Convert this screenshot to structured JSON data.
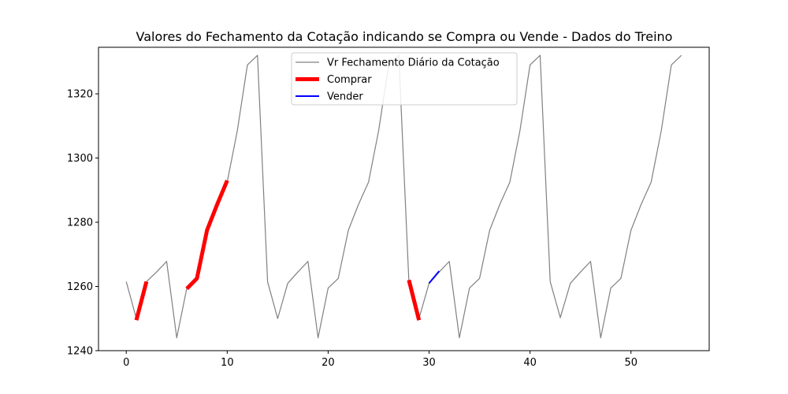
{
  "chart_data": {
    "type": "line",
    "title": "Valores do Fechamento da Cotação indicando se Compra ou Vende - Dados do Treino",
    "xlabel": "",
    "ylabel": "",
    "xlim": [
      -2.75,
      57.75
    ],
    "ylim": [
      1240,
      1334.5
    ],
    "x_ticks": [
      0,
      10,
      20,
      30,
      40,
      50
    ],
    "y_ticks": [
      1240,
      1260,
      1280,
      1300,
      1320
    ],
    "grid": false,
    "legend_position": "top-center",
    "series": [
      {
        "name": "Vr Fechamento Diário da Cotação",
        "color": "#808080",
        "x": [
          0,
          1,
          2,
          3,
          4,
          5,
          6,
          7,
          8,
          9,
          10,
          11,
          12,
          13,
          14,
          15,
          16,
          17,
          18,
          19,
          20,
          21,
          22,
          23,
          24,
          25,
          26,
          27,
          28,
          29,
          30,
          31,
          32,
          33,
          34,
          35,
          36,
          37,
          38,
          39,
          40,
          41,
          42,
          43,
          44,
          45,
          46,
          47,
          48,
          49,
          50,
          51,
          52,
          53,
          54,
          55
        ],
        "values": [
          1261.5,
          1250,
          1261.5,
          1264.5,
          1267.8,
          1244,
          1259.5,
          1262.5,
          1277.5,
          1285.5,
          1292.5,
          1308.5,
          1329,
          1332,
          1261.5,
          1250,
          1261,
          1264.5,
          1267.8,
          1244,
          1259.5,
          1262.5,
          1277.5,
          1285.5,
          1292.5,
          1308.5,
          1329,
          1332,
          1261.5,
          1250,
          1261,
          1264.5,
          1267.8,
          1244,
          1259.5,
          1262.5,
          1277.5,
          1285.5,
          1292.5,
          1308.5,
          1329,
          1332,
          1261.5,
          1250.3,
          1261,
          1264.5,
          1267.8,
          1244,
          1259.5,
          1262.5,
          1277.5,
          1285.5,
          1292.5,
          1308.5,
          1329,
          1332
        ]
      },
      {
        "name": "Comprar",
        "color": "#ff0000",
        "segments": [
          {
            "x": [
              1,
              2
            ],
            "values": [
              1249.5,
              1261.5
            ]
          },
          {
            "x": [
              6,
              7,
              8,
              9,
              10
            ],
            "values": [
              1259.3,
              1262.5,
              1277.5,
              1285.5,
              1293
            ]
          },
          {
            "x": [
              28,
              29
            ],
            "values": [
              1262,
              1249.5
            ]
          }
        ]
      },
      {
        "name": "Vender",
        "color": "#0000ff",
        "segments": [
          {
            "x": [
              30,
              31
            ],
            "values": [
              1261,
              1264.8
            ]
          }
        ]
      }
    ]
  }
}
